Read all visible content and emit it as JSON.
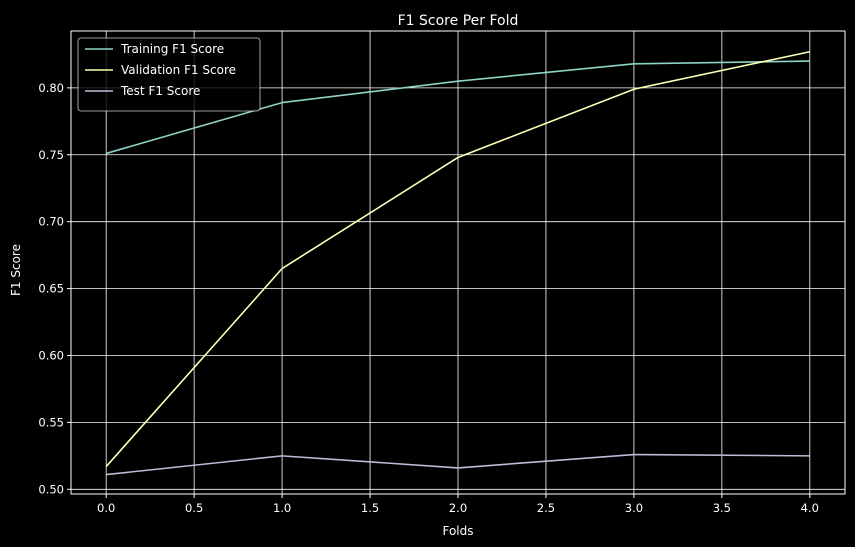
{
  "chart_data": {
    "type": "line",
    "title": "F1 Score Per Fold",
    "xlabel": "Folds",
    "ylabel": "F1 Score",
    "x": [
      0,
      1,
      2,
      3,
      4
    ],
    "xlim": [
      -0.2,
      4.2
    ],
    "ylim": [
      0.4965,
      0.8425
    ],
    "xticks": [
      "0.0",
      "0.5",
      "1.0",
      "1.5",
      "2.0",
      "2.5",
      "3.0",
      "3.5",
      "4.0"
    ],
    "yticks": [
      "0.50",
      "0.55",
      "0.60",
      "0.65",
      "0.70",
      "0.75",
      "0.80"
    ],
    "grid": true,
    "legend_position": "top-left",
    "series": [
      {
        "name": "Training F1 Score",
        "color": "#8dd3c7",
        "values": [
          0.751,
          0.789,
          0.805,
          0.818,
          0.82
        ]
      },
      {
        "name": "Validation F1 Score",
        "color": "#feffb3",
        "values": [
          0.517,
          0.665,
          0.748,
          0.799,
          0.827
        ]
      },
      {
        "name": "Test F1 Score",
        "color": "#bfbbd9",
        "values": [
          0.511,
          0.525,
          0.516,
          0.526,
          0.525
        ]
      }
    ]
  }
}
